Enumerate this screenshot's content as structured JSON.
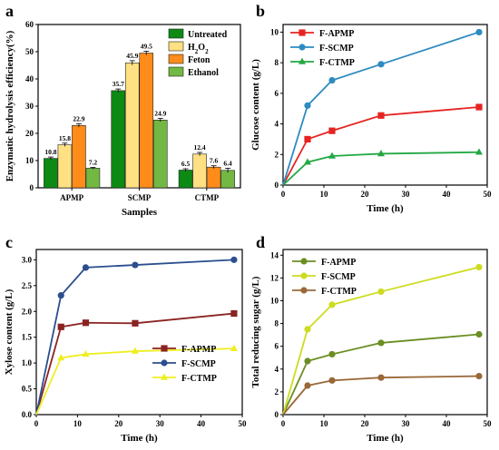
{
  "figure": {
    "panel_labels": [
      "a",
      "b",
      "c",
      "d"
    ]
  },
  "chart_data": [
    {
      "panel": "a",
      "type": "bar",
      "xlabel": "Samples",
      "ylabel": "Enzymatic hydrolysis efficiency(%)",
      "categories": [
        "APMP",
        "SCMP",
        "CTMP"
      ],
      "ylim": [
        0,
        60
      ],
      "yticks": [
        0,
        10,
        20,
        30,
        40,
        50,
        60
      ],
      "legend": "top-right",
      "grid": false,
      "series": [
        {
          "name": "Untreated",
          "color": "#0c8a14",
          "values": [
            10.8,
            35.7,
            6.5
          ],
          "errors": [
            0.5,
            0.6,
            0.5
          ],
          "data_labels": [
            "10.8",
            "35.7",
            "6.5"
          ]
        },
        {
          "name": "H2O2",
          "color": "#ffe082",
          "values": [
            15.8,
            45.9,
            12.4
          ],
          "errors": [
            0.6,
            0.8,
            0.6
          ],
          "data_labels": [
            "15.8",
            "45.9",
            "12.4"
          ]
        },
        {
          "name": "Feton",
          "color": "#ff8c1a",
          "values": [
            22.9,
            49.5,
            7.6
          ],
          "errors": [
            0.6,
            0.7,
            0.5
          ],
          "data_labels": [
            "22.9",
            "49.5",
            "7.6"
          ]
        },
        {
          "name": "Ethanol",
          "color": "#72b843",
          "values": [
            7.2,
            24.9,
            6.4
          ],
          "errors": [
            0.3,
            0.6,
            0.8
          ],
          "data_labels": [
            "7.2",
            "24.9",
            "6.4"
          ]
        }
      ]
    },
    {
      "panel": "b",
      "type": "line",
      "xlabel": "Time (h)",
      "ylabel": "Glucose content (g/L)",
      "xlim": [
        0,
        50
      ],
      "ylim": [
        0,
        10.5
      ],
      "xticks": [
        0,
        10,
        20,
        30,
        40,
        50
      ],
      "yticks": [
        0,
        2,
        4,
        6,
        8,
        10
      ],
      "legend": "top-left",
      "grid": false,
      "x": [
        0,
        6,
        12,
        24,
        48
      ],
      "series": [
        {
          "name": "F-APMP",
          "color": "#e52421",
          "marker": "square",
          "values": [
            0,
            3.0,
            3.55,
            4.55,
            5.1
          ]
        },
        {
          "name": "F-SCMP",
          "color": "#2e8bc0",
          "marker": "circle",
          "values": [
            0,
            5.2,
            6.85,
            7.9,
            10.0
          ]
        },
        {
          "name": "F-CTMP",
          "color": "#23a844",
          "marker": "triangle",
          "values": [
            0,
            1.5,
            1.9,
            2.05,
            2.15
          ]
        }
      ]
    },
    {
      "panel": "c",
      "type": "line",
      "xlabel": "Time (h)",
      "ylabel": "Xylose content (g/L)",
      "xlim": [
        0,
        50
      ],
      "ylim": [
        0,
        3.2
      ],
      "xticks": [
        0,
        10,
        20,
        30,
        40,
        50
      ],
      "yticks": [
        0.0,
        0.5,
        1.0,
        1.5,
        2.0,
        2.5,
        3.0
      ],
      "legend": "bottom-right",
      "grid": false,
      "x": [
        0,
        6,
        12,
        24,
        48
      ],
      "series": [
        {
          "name": "F-APMP",
          "color": "#8b2323",
          "marker": "square",
          "values": [
            0,
            1.7,
            1.78,
            1.77,
            1.96
          ]
        },
        {
          "name": "F-SCMP",
          "color": "#2b4f8e",
          "marker": "circle",
          "values": [
            0,
            2.31,
            2.85,
            2.9,
            3.0
          ]
        },
        {
          "name": "F-CTMP",
          "color": "#eeee22",
          "marker": "triangle",
          "values": [
            0,
            1.1,
            1.17,
            1.23,
            1.28
          ]
        }
      ]
    },
    {
      "panel": "d",
      "type": "line",
      "xlabel": "Time (h)",
      "ylabel": "Total reducing sugar (g/L)",
      "xlim": [
        0,
        50
      ],
      "ylim": [
        0,
        14.5
      ],
      "xticks": [
        0,
        10,
        20,
        30,
        40,
        50
      ],
      "yticks": [
        0,
        2,
        4,
        6,
        8,
        10,
        12,
        14
      ],
      "legend": "top-left",
      "grid": false,
      "x": [
        0,
        6,
        12,
        24,
        48
      ],
      "series": [
        {
          "name": "F-APMP",
          "color": "#6b8e23",
          "marker": "circle",
          "values": [
            0,
            4.7,
            5.3,
            6.3,
            7.05
          ]
        },
        {
          "name": "F-SCMP",
          "color": "#cddc1e",
          "marker": "circle",
          "values": [
            0,
            7.5,
            9.65,
            10.8,
            12.95
          ]
        },
        {
          "name": "F-CTMP",
          "color": "#9a6838",
          "marker": "circle",
          "values": [
            0,
            2.55,
            3.0,
            3.25,
            3.38
          ]
        }
      ]
    }
  ]
}
